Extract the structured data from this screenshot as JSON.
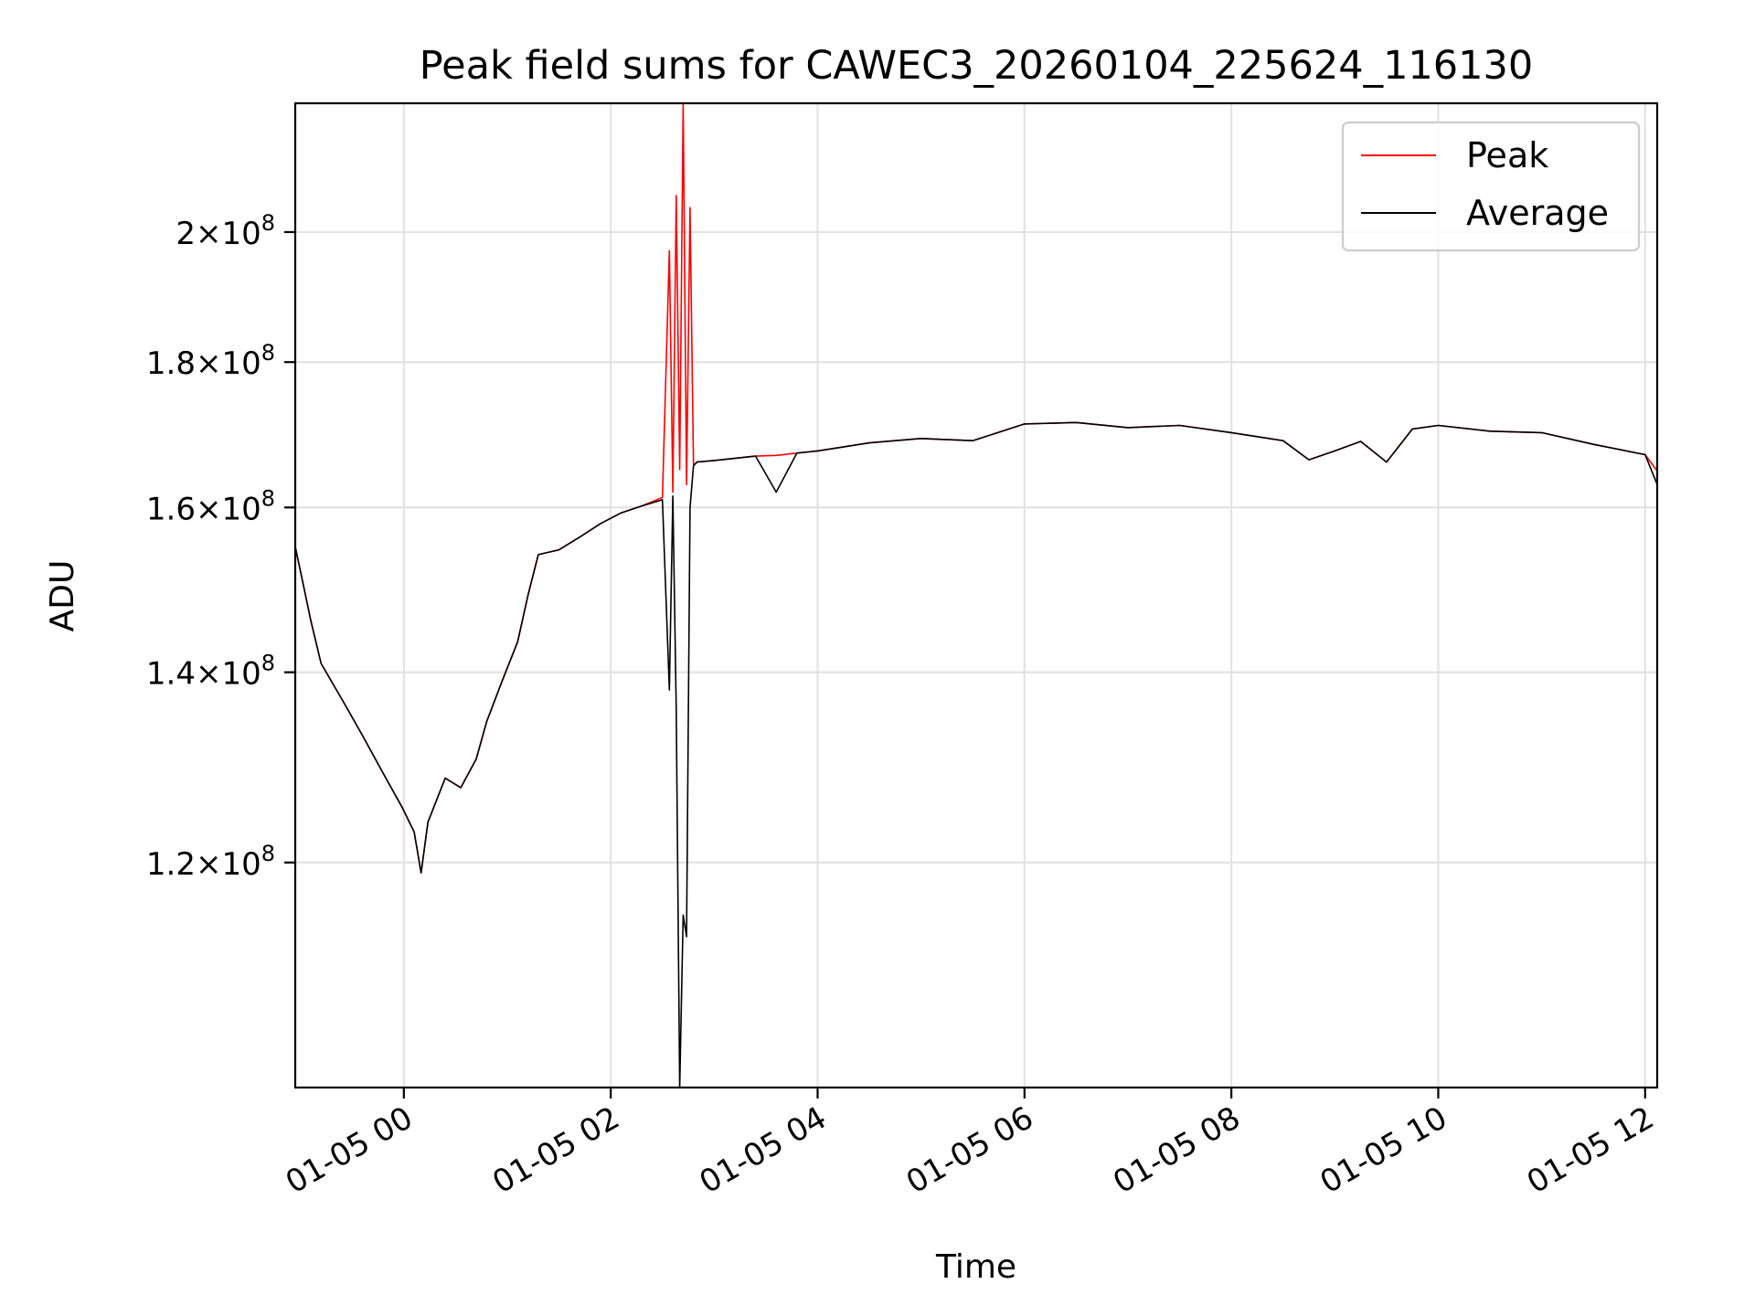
{
  "chart_data": {
    "type": "line",
    "title": "Peak field sums for CAWEC3_20260104_225624_116130",
    "xlabel": "Time",
    "ylabel": "ADU",
    "yscale": "log",
    "grid": true,
    "legend_position": "top-right",
    "xlim": [
      "2026-01-04 22:57",
      "2026-01-05 12:07"
    ],
    "ylim": [
      100000000,
      222000000
    ],
    "x_ticks": [
      {
        "value": "2026-01-05 00:00",
        "label": "01-05 00"
      },
      {
        "value": "2026-01-05 02:00",
        "label": "01-05 02"
      },
      {
        "value": "2026-01-05 04:00",
        "label": "01-05 04"
      },
      {
        "value": "2026-01-05 06:00",
        "label": "01-05 06"
      },
      {
        "value": "2026-01-05 08:00",
        "label": "01-05 08"
      },
      {
        "value": "2026-01-05 10:00",
        "label": "01-05 10"
      },
      {
        "value": "2026-01-05 12:00",
        "label": "01-05 12"
      }
    ],
    "y_ticks": [
      {
        "value": 120000000,
        "mantissa": "1.2",
        "exponent": "8"
      },
      {
        "value": 140000000,
        "mantissa": "1.4",
        "exponent": "8"
      },
      {
        "value": 160000000,
        "mantissa": "1.6",
        "exponent": "8"
      },
      {
        "value": 180000000,
        "mantissa": "1.8",
        "exponent": "8"
      },
      {
        "value": 200000000,
        "mantissa": "2",
        "exponent": "8"
      }
    ],
    "series": [
      {
        "name": "Peak",
        "color": "#ff0000",
        "points": [
          [
            "2026-01-04 22:57",
            155000000
          ],
          [
            "2026-01-04 23:01",
            151000000
          ],
          [
            "2026-01-04 23:06",
            146000000
          ],
          [
            "2026-01-04 23:12",
            141000000
          ],
          [
            "2026-01-04 23:24",
            137000000
          ],
          [
            "2026-01-04 23:36",
            133000000
          ],
          [
            "2026-01-04 23:48",
            129000000
          ],
          [
            "2026-01-04 23:59",
            125500000
          ],
          [
            "2026-01-05 00:06",
            123000000
          ],
          [
            "2026-01-05 00:10",
            119000000
          ],
          [
            "2026-01-05 00:14",
            124000000
          ],
          [
            "2026-01-05 00:24",
            128500000
          ],
          [
            "2026-01-05 00:33",
            127500000
          ],
          [
            "2026-01-05 00:42",
            130500000
          ],
          [
            "2026-01-05 00:48",
            134500000
          ],
          [
            "2026-01-05 00:57",
            139000000
          ],
          [
            "2026-01-05 01:06",
            143500000
          ],
          [
            "2026-01-05 01:12",
            149000000
          ],
          [
            "2026-01-05 01:18",
            154000000
          ],
          [
            "2026-01-05 01:30",
            154600000
          ],
          [
            "2026-01-05 01:42",
            156200000
          ],
          [
            "2026-01-05 01:54",
            157900000
          ],
          [
            "2026-01-05 02:06",
            159300000
          ],
          [
            "2026-01-05 02:18",
            160200000
          ],
          [
            "2026-01-05 02:30",
            161300000
          ],
          [
            "2026-01-05 02:34",
            197000000
          ],
          [
            "2026-01-05 02:36",
            162000000
          ],
          [
            "2026-01-05 02:38",
            206000000
          ],
          [
            "2026-01-05 02:40",
            165000000
          ],
          [
            "2026-01-05 02:42",
            222000000
          ],
          [
            "2026-01-05 02:44",
            163000000
          ],
          [
            "2026-01-05 02:46",
            204000000
          ],
          [
            "2026-01-05 02:48",
            165500000
          ],
          [
            "2026-01-05 02:50",
            166000000
          ],
          [
            "2026-01-05 03:00",
            166200000
          ],
          [
            "2026-01-05 03:24",
            166800000
          ],
          [
            "2026-01-05 03:36",
            166900000
          ],
          [
            "2026-01-05 03:48",
            167200000
          ],
          [
            "2026-01-05 04:00",
            167500000
          ],
          [
            "2026-01-05 04:30",
            168600000
          ],
          [
            "2026-01-05 05:00",
            169200000
          ],
          [
            "2026-01-05 05:30",
            168900000
          ],
          [
            "2026-01-05 06:00",
            171200000
          ],
          [
            "2026-01-05 06:30",
            171400000
          ],
          [
            "2026-01-05 07:00",
            170700000
          ],
          [
            "2026-01-05 07:30",
            171000000
          ],
          [
            "2026-01-05 08:00",
            170000000
          ],
          [
            "2026-01-05 08:30",
            168900000
          ],
          [
            "2026-01-05 08:45",
            166300000
          ],
          [
            "2026-01-05 09:00",
            167500000
          ],
          [
            "2026-01-05 09:15",
            168800000
          ],
          [
            "2026-01-05 09:30",
            166000000
          ],
          [
            "2026-01-05 09:45",
            170500000
          ],
          [
            "2026-01-05 10:00",
            171000000
          ],
          [
            "2026-01-05 10:30",
            170200000
          ],
          [
            "2026-01-05 11:00",
            170000000
          ],
          [
            "2026-01-05 11:30",
            168400000
          ],
          [
            "2026-01-05 12:00",
            167000000
          ],
          [
            "2026-01-05 12:07",
            164800000
          ]
        ]
      },
      {
        "name": "Average",
        "color": "#000000",
        "points": [
          [
            "2026-01-04 22:57",
            155000000
          ],
          [
            "2026-01-04 23:01",
            151000000
          ],
          [
            "2026-01-04 23:06",
            146000000
          ],
          [
            "2026-01-04 23:12",
            141000000
          ],
          [
            "2026-01-04 23:24",
            137000000
          ],
          [
            "2026-01-04 23:36",
            133000000
          ],
          [
            "2026-01-04 23:48",
            129000000
          ],
          [
            "2026-01-04 23:59",
            125500000
          ],
          [
            "2026-01-05 00:06",
            123000000
          ],
          [
            "2026-01-05 00:10",
            119000000
          ],
          [
            "2026-01-05 00:14",
            124000000
          ],
          [
            "2026-01-05 00:24",
            128500000
          ],
          [
            "2026-01-05 00:33",
            127500000
          ],
          [
            "2026-01-05 00:42",
            130500000
          ],
          [
            "2026-01-05 00:48",
            134500000
          ],
          [
            "2026-01-05 00:57",
            139000000
          ],
          [
            "2026-01-05 01:06",
            143500000
          ],
          [
            "2026-01-05 01:12",
            149000000
          ],
          [
            "2026-01-05 01:18",
            154000000
          ],
          [
            "2026-01-05 01:30",
            154600000
          ],
          [
            "2026-01-05 01:42",
            156200000
          ],
          [
            "2026-01-05 01:54",
            157900000
          ],
          [
            "2026-01-05 02:06",
            159300000
          ],
          [
            "2026-01-05 02:18",
            160200000
          ],
          [
            "2026-01-05 02:30",
            161000000
          ],
          [
            "2026-01-05 02:34",
            138000000
          ],
          [
            "2026-01-05 02:36",
            161500000
          ],
          [
            "2026-01-05 02:38",
            136000000
          ],
          [
            "2026-01-05 02:40",
            100000000
          ],
          [
            "2026-01-05 02:42",
            115000000
          ],
          [
            "2026-01-05 02:44",
            113000000
          ],
          [
            "2026-01-05 02:46",
            160000000
          ],
          [
            "2026-01-05 02:48",
            165500000
          ],
          [
            "2026-01-05 02:50",
            166000000
          ],
          [
            "2026-01-05 03:00",
            166200000
          ],
          [
            "2026-01-05 03:24",
            166800000
          ],
          [
            "2026-01-05 03:36",
            162000000
          ],
          [
            "2026-01-05 03:48",
            167200000
          ],
          [
            "2026-01-05 04:00",
            167500000
          ],
          [
            "2026-01-05 04:30",
            168600000
          ],
          [
            "2026-01-05 05:00",
            169200000
          ],
          [
            "2026-01-05 05:30",
            168900000
          ],
          [
            "2026-01-05 06:00",
            171200000
          ],
          [
            "2026-01-05 06:30",
            171400000
          ],
          [
            "2026-01-05 07:00",
            170700000
          ],
          [
            "2026-01-05 07:30",
            171000000
          ],
          [
            "2026-01-05 08:00",
            170000000
          ],
          [
            "2026-01-05 08:30",
            168900000
          ],
          [
            "2026-01-05 08:45",
            166300000
          ],
          [
            "2026-01-05 09:00",
            167500000
          ],
          [
            "2026-01-05 09:15",
            168800000
          ],
          [
            "2026-01-05 09:30",
            166000000
          ],
          [
            "2026-01-05 09:45",
            170500000
          ],
          [
            "2026-01-05 10:00",
            171000000
          ],
          [
            "2026-01-05 10:30",
            170200000
          ],
          [
            "2026-01-05 11:00",
            170000000
          ],
          [
            "2026-01-05 11:30",
            168400000
          ],
          [
            "2026-01-05 12:00",
            167000000
          ],
          [
            "2026-01-05 12:07",
            163000000
          ]
        ]
      }
    ]
  }
}
